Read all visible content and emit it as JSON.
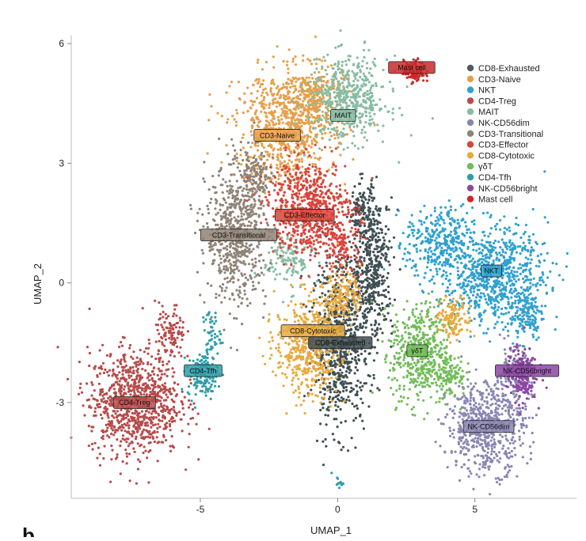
{
  "panel_letter": "b",
  "colors": {
    "axis": "#bbbbbb",
    "tick": "#888888",
    "text": "#222222"
  },
  "chart_data": {
    "type": "scatter",
    "title": "",
    "xlabel": "UMAP_1",
    "ylabel": "UMAP_2",
    "xlim": [
      -9.7,
      8.7
    ],
    "ylim": [
      -5.4,
      6.2
    ],
    "xticks": [
      -5,
      0,
      5
    ],
    "xtick_labels": [
      "-5",
      "0",
      "5"
    ],
    "yticks": [
      -3,
      0,
      3,
      6
    ],
    "ytick_labels": [
      "-3",
      "0",
      "3",
      "6"
    ],
    "grid": false,
    "legend_position": "top-right",
    "legend": [
      {
        "name": "CD8-Exhausted",
        "color": "#4f5b5e"
      },
      {
        "name": "CD3-Naive",
        "color": "#e69f4a"
      },
      {
        "name": "NKT",
        "color": "#2fa1cf"
      },
      {
        "name": "CD4-Treg",
        "color": "#b84a4a"
      },
      {
        "name": "MAIT",
        "color": "#86bca1"
      },
      {
        "name": "NK-CD56dim",
        "color": "#8a86b2"
      },
      {
        "name": "CD3-Transitional",
        "color": "#8f8376"
      },
      {
        "name": "CD3-Effector",
        "color": "#d9443a"
      },
      {
        "name": "CD8-Cytotoxic",
        "color": "#e8a93f"
      },
      {
        "name": "γδT",
        "color": "#71bd58"
      },
      {
        "name": "CD4-Tfh",
        "color": "#2f9eaa"
      },
      {
        "name": "NK-CD56bright",
        "color": "#8d45a3"
      },
      {
        "name": "Mast cell",
        "color": "#c92a2a"
      }
    ],
    "clusters": [
      {
        "name": "CD8-Exhausted",
        "color": "#3f4f53",
        "label": "CD8-Exhausted",
        "label_x": 0.1,
        "label_y": -1.5,
        "blobs": [
          {
            "cx": 0.1,
            "cy": -1.5,
            "rx": 0.95,
            "ry": 1.85,
            "n": 750
          },
          {
            "cx": 1.3,
            "cy": 0.4,
            "rx": 0.65,
            "ry": 1.5,
            "n": 420
          },
          {
            "cx": 0.9,
            "cy": 1.8,
            "rx": 0.45,
            "ry": 0.6,
            "n": 120
          }
        ]
      },
      {
        "name": "CD3-Naive",
        "color": "#e69f4a",
        "label": "CD3-Naive",
        "label_x": -2.2,
        "label_y": 3.7,
        "blobs": [
          {
            "cx": -1.9,
            "cy": 3.9,
            "rx": 1.65,
            "ry": 1.25,
            "n": 720
          },
          {
            "cx": -0.9,
            "cy": 4.7,
            "rx": 1.0,
            "ry": 0.7,
            "n": 260
          }
        ]
      },
      {
        "name": "NKT",
        "color": "#2fa1cf",
        "label": "NKT",
        "label_x": 5.6,
        "label_y": 0.3,
        "blobs": [
          {
            "cx": 5.7,
            "cy": 0.2,
            "rx": 1.75,
            "ry": 1.1,
            "n": 800
          },
          {
            "cx": 3.7,
            "cy": 1.0,
            "rx": 1.1,
            "ry": 0.8,
            "n": 320
          },
          {
            "cx": 6.9,
            "cy": -0.8,
            "rx": 0.55,
            "ry": 0.6,
            "n": 120
          }
        ]
      },
      {
        "name": "CD4-Treg",
        "color": "#b84a4a",
        "label": "CD4-Treg",
        "label_x": -7.4,
        "label_y": -3.0,
        "blobs": [
          {
            "cx": -7.4,
            "cy": -3.0,
            "rx": 1.5,
            "ry": 1.2,
            "n": 900
          },
          {
            "cx": -6.1,
            "cy": -1.3,
            "rx": 0.5,
            "ry": 0.7,
            "n": 120
          }
        ]
      },
      {
        "name": "MAIT",
        "color": "#86bca1",
        "label": "MAIT",
        "label_x": 0.2,
        "label_y": 4.2,
        "blobs": [
          {
            "cx": 0.4,
            "cy": 4.6,
            "rx": 1.3,
            "ry": 0.95,
            "n": 520
          },
          {
            "cx": -1.8,
            "cy": 0.6,
            "rx": 0.8,
            "ry": 0.7,
            "n": 140
          }
        ]
      },
      {
        "name": "NK-CD56dim",
        "color": "#8a86b2",
        "label": "NK-CD56dim",
        "label_x": 5.5,
        "label_y": -3.6,
        "blobs": [
          {
            "cx": 5.4,
            "cy": -3.6,
            "rx": 1.3,
            "ry": 1.05,
            "n": 620
          },
          {
            "cx": 6.4,
            "cy": -2.4,
            "rx": 0.6,
            "ry": 0.7,
            "n": 140
          }
        ]
      },
      {
        "name": "CD3-Transitional",
        "color": "#8f8376",
        "label": "CD3-Transitional",
        "label_x": -3.6,
        "label_y": 1.2,
        "blobs": [
          {
            "cx": -3.7,
            "cy": 1.2,
            "rx": 1.0,
            "ry": 1.55,
            "n": 620
          },
          {
            "cx": -3.0,
            "cy": 2.6,
            "rx": 0.6,
            "ry": 0.7,
            "n": 140
          }
        ]
      },
      {
        "name": "CD3-Effector",
        "color": "#d9443a",
        "label": "CD3-Effector",
        "label_x": -1.2,
        "label_y": 1.7,
        "blobs": [
          {
            "cx": -1.1,
            "cy": 1.9,
            "rx": 1.3,
            "ry": 1.1,
            "n": 620
          },
          {
            "cx": 0.2,
            "cy": 1.0,
            "rx": 0.6,
            "ry": 0.8,
            "n": 150
          }
        ]
      },
      {
        "name": "CD8-Cytotoxic",
        "color": "#e8a93f",
        "label": "CD8-Cytotoxic",
        "label_x": -0.9,
        "label_y": -1.2,
        "blobs": [
          {
            "cx": -1.1,
            "cy": -1.6,
            "rx": 1.05,
            "ry": 1.1,
            "n": 520
          },
          {
            "cx": 0.2,
            "cy": -0.3,
            "rx": 0.6,
            "ry": 0.55,
            "n": 160
          },
          {
            "cx": 4.2,
            "cy": -0.9,
            "rx": 0.6,
            "ry": 0.45,
            "n": 140
          }
        ]
      },
      {
        "name": "γδT",
        "color": "#71bd58",
        "label": "γδT",
        "label_x": 2.9,
        "label_y": -1.7,
        "blobs": [
          {
            "cx": 3.0,
            "cy": -1.8,
            "rx": 0.95,
            "ry": 1.15,
            "n": 480
          },
          {
            "cx": 4.1,
            "cy": -2.3,
            "rx": 0.5,
            "ry": 0.5,
            "n": 100
          }
        ]
      },
      {
        "name": "CD4-Tfh",
        "color": "#2f9eaa",
        "label": "CD4-Tfh",
        "label_x": -4.9,
        "label_y": -2.2,
        "blobs": [
          {
            "cx": -4.9,
            "cy": -2.3,
            "rx": 0.5,
            "ry": 0.5,
            "n": 150
          },
          {
            "cx": -4.6,
            "cy": -1.3,
            "rx": 0.3,
            "ry": 0.6,
            "n": 50
          },
          {
            "cx": 0.0,
            "cy": -5.0,
            "rx": 0.2,
            "ry": 0.12,
            "n": 12
          }
        ]
      },
      {
        "name": "NK-CD56bright",
        "color": "#8d45a3",
        "label": "NK-CD56bright",
        "label_x": 6.9,
        "label_y": -2.2,
        "blobs": [
          {
            "cx": 6.7,
            "cy": -2.3,
            "rx": 0.5,
            "ry": 0.6,
            "n": 200
          }
        ]
      },
      {
        "name": "Mast cell",
        "color": "#c92a2a",
        "label": "Mast cell",
        "label_x": 2.7,
        "label_y": 5.4,
        "blobs": [
          {
            "cx": 2.8,
            "cy": 5.3,
            "rx": 0.35,
            "ry": 0.25,
            "n": 120
          }
        ]
      }
    ]
  }
}
